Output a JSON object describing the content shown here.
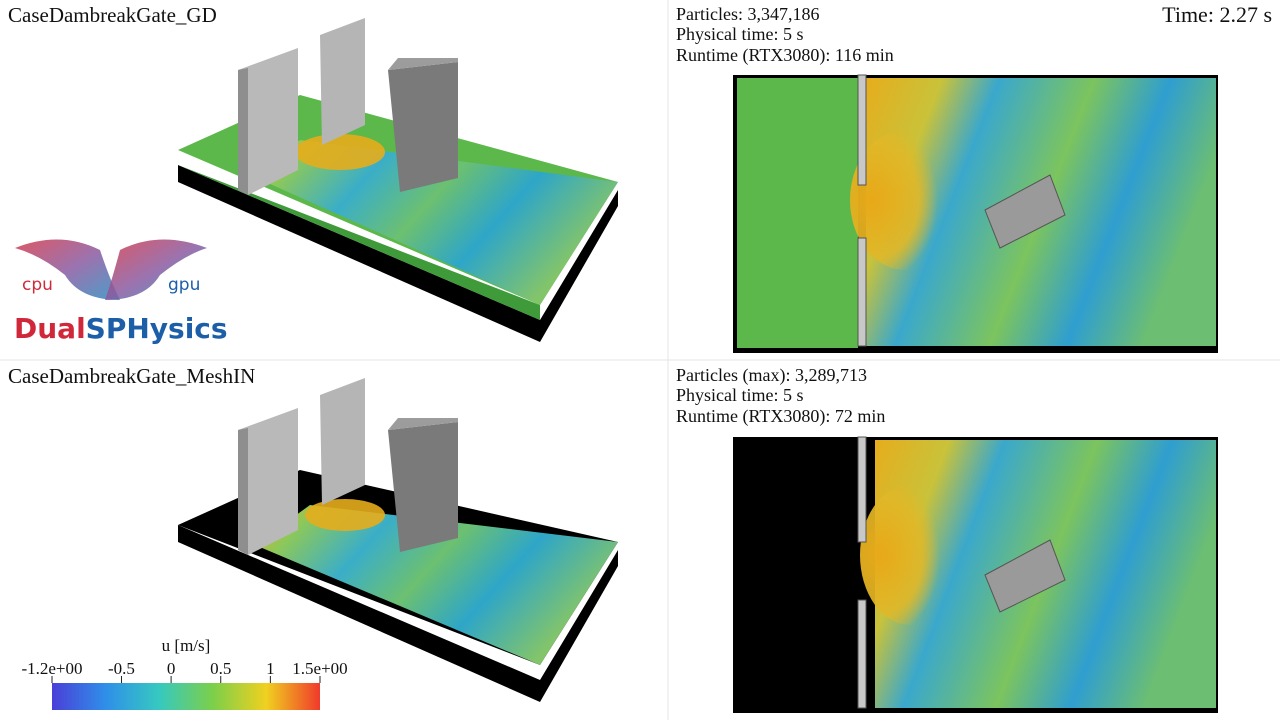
{
  "top_left": {
    "title": "CaseDambreakGate_GD"
  },
  "top_right": {
    "info": [
      "Particles: 3,347,186",
      "Physical time: 5 s",
      "Runtime (RTX3080): 116 min"
    ],
    "time": "Time: 2.27 s"
  },
  "bottom_left": {
    "title": "CaseDambreakGate_MeshIN"
  },
  "bottom_right": {
    "info": [
      "Particles (max): 3,289,713",
      "Physical time: 5 s",
      "Runtime (RTX3080): 72 min"
    ]
  },
  "logo": {
    "left": "cpu",
    "right": "gpu",
    "name_first": "Dual",
    "name_second": "SPHysics"
  },
  "colorbar": {
    "title": "u [m/s]",
    "range": [
      -1.2,
      1.5
    ],
    "ticks": [
      {
        "value": -1.2,
        "label": "-1.2e+00"
      },
      -0.5,
      0,
      0.5,
      1,
      {
        "value": 1.5,
        "label": "1.5e+00"
      }
    ]
  }
}
